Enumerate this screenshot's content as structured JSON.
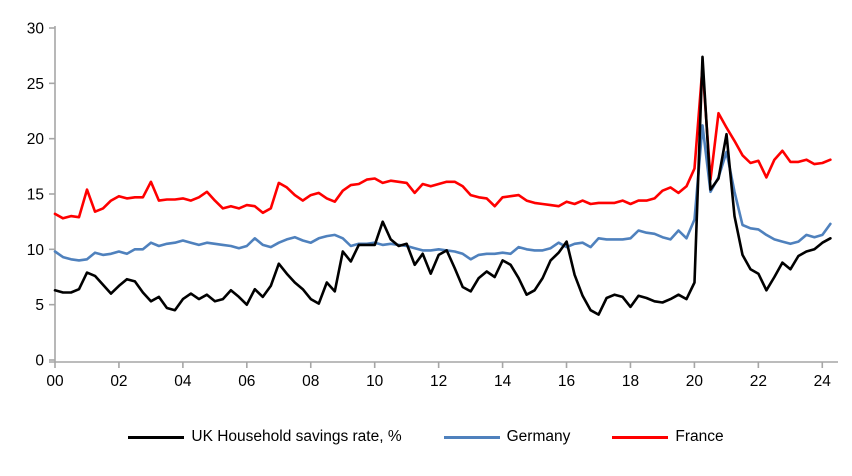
{
  "chart_data": {
    "type": "line",
    "title": "",
    "frequency": "quarterly",
    "x_start": "2000Q1",
    "x_end": "2024Q2",
    "x_tick_labels": [
      "00",
      "02",
      "04",
      "06",
      "08",
      "10",
      "12",
      "14",
      "16",
      "18",
      "20",
      "22",
      "24"
    ],
    "y_tick_labels": [
      "0",
      "5",
      "10",
      "15",
      "20",
      "25",
      "30"
    ],
    "y_ticks": [
      0,
      5,
      10,
      15,
      20,
      25,
      30
    ],
    "ylim": [
      0,
      30
    ],
    "grid": "off",
    "legend_position": "bottom",
    "axis_color": "#A6A6A6",
    "series": [
      {
        "name": "UK Household savings rate, %",
        "color": "#000000",
        "values": [
          6.3,
          6.1,
          6.1,
          6.4,
          7.9,
          7.6,
          6.8,
          6.0,
          6.7,
          7.3,
          7.1,
          6.1,
          5.3,
          5.7,
          4.7,
          4.5,
          5.5,
          6.0,
          5.5,
          5.9,
          5.3,
          5.5,
          6.3,
          5.7,
          5.0,
          6.4,
          5.7,
          6.7,
          8.7,
          7.8,
          7.0,
          6.4,
          5.5,
          5.1,
          7.0,
          6.2,
          9.8,
          8.9,
          10.4,
          10.4,
          10.4,
          12.5,
          10.9,
          10.3,
          10.5,
          8.6,
          9.6,
          7.8,
          9.5,
          9.9,
          8.3,
          6.6,
          6.2,
          7.4,
          8.0,
          7.5,
          9.0,
          8.6,
          7.4,
          5.9,
          6.3,
          7.4,
          9.0,
          9.7,
          10.7,
          7.7,
          5.8,
          4.5,
          4.1,
          5.6,
          5.9,
          5.7,
          4.8,
          5.8,
          5.6,
          5.3,
          5.2,
          5.5,
          5.9,
          5.5,
          7.0,
          27.4,
          15.4,
          16.4,
          20.4,
          13.0,
          9.5,
          8.2,
          7.8,
          6.3,
          7.5,
          8.8,
          8.2,
          9.4,
          9.8,
          10.0,
          10.6,
          11.0
        ]
      },
      {
        "name": "Germany",
        "color": "#4F81BD",
        "values": [
          9.8,
          9.3,
          9.1,
          9.0,
          9.1,
          9.7,
          9.5,
          9.6,
          9.8,
          9.6,
          10.0,
          10.0,
          10.6,
          10.3,
          10.5,
          10.6,
          10.8,
          10.6,
          10.4,
          10.6,
          10.5,
          10.4,
          10.3,
          10.1,
          10.3,
          11.0,
          10.4,
          10.2,
          10.6,
          10.9,
          11.1,
          10.8,
          10.6,
          11.0,
          11.2,
          11.3,
          11.0,
          10.3,
          10.5,
          10.5,
          10.6,
          10.4,
          10.5,
          10.4,
          10.3,
          10.1,
          9.9,
          9.9,
          10.0,
          9.9,
          9.8,
          9.6,
          9.1,
          9.5,
          9.6,
          9.6,
          9.7,
          9.6,
          10.2,
          10.0,
          9.9,
          9.9,
          10.1,
          10.6,
          10.2,
          10.5,
          10.6,
          10.2,
          11.0,
          10.9,
          10.9,
          10.9,
          11.0,
          11.7,
          11.5,
          11.4,
          11.1,
          10.9,
          11.7,
          11.0,
          12.7,
          21.2,
          15.2,
          16.5,
          18.8,
          15.2,
          12.2,
          11.9,
          11.8,
          11.3,
          10.9,
          10.7,
          10.5,
          10.7,
          11.3,
          11.1,
          11.3,
          12.3
        ]
      },
      {
        "name": "France",
        "color": "#FF0000",
        "values": [
          13.2,
          12.8,
          13.0,
          12.9,
          15.4,
          13.4,
          13.7,
          14.4,
          14.8,
          14.6,
          14.7,
          14.7,
          16.1,
          14.4,
          14.5,
          14.5,
          14.6,
          14.4,
          14.7,
          15.2,
          14.4,
          13.7,
          13.9,
          13.7,
          14.0,
          13.9,
          13.3,
          13.7,
          16.0,
          15.6,
          14.9,
          14.4,
          14.9,
          15.1,
          14.6,
          14.3,
          15.3,
          15.8,
          15.9,
          16.3,
          16.4,
          16.0,
          16.2,
          16.1,
          16.0,
          15.1,
          15.9,
          15.7,
          15.9,
          16.1,
          16.1,
          15.7,
          14.9,
          14.7,
          14.6,
          13.9,
          14.7,
          14.8,
          14.9,
          14.4,
          14.2,
          14.1,
          14.0,
          13.9,
          14.3,
          14.1,
          14.4,
          14.1,
          14.2,
          14.2,
          14.2,
          14.4,
          14.1,
          14.4,
          14.4,
          14.6,
          15.3,
          15.6,
          15.1,
          15.7,
          17.3,
          26.5,
          16.3,
          22.3,
          21.0,
          19.8,
          18.5,
          17.8,
          18.0,
          16.5,
          18.1,
          18.9,
          17.9,
          17.9,
          18.1,
          17.7,
          17.8,
          18.1
        ]
      }
    ]
  },
  "legend": {
    "items": [
      {
        "label": "UK Household savings rate, %"
      },
      {
        "label": "Germany"
      },
      {
        "label": "France"
      }
    ]
  }
}
